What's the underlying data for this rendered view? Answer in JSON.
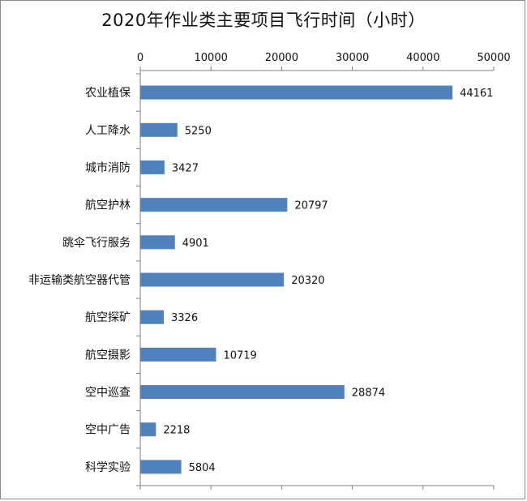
{
  "chart_data": {
    "type": "bar",
    "orientation": "horizontal",
    "title": "2020年作业类主要项目飞行时间（小时）",
    "xlim": [
      0,
      50000
    ],
    "ticks": [
      0,
      10000,
      20000,
      30000,
      40000,
      50000
    ],
    "tick_labels": [
      "0",
      "10000",
      "20000",
      "30000",
      "40000",
      "50000"
    ],
    "x_axis_position": "top",
    "grid": false,
    "legend": "none",
    "categories": [
      "农业植保",
      "人工降水",
      "城市消防",
      "航空护林",
      "跳伞飞行服务",
      "非运输类航空器代管",
      "航空探矿",
      "航空摄影",
      "空中巡查",
      "空中广告",
      "科学实验"
    ],
    "values": [
      44161,
      5250,
      3427,
      20797,
      4901,
      20320,
      3326,
      10719,
      28874,
      2218,
      5804
    ],
    "data_labels": [
      "44161",
      "5250",
      "3427",
      "20797",
      "4901",
      "20320",
      "3326",
      "10719",
      "28874",
      "2218",
      "5804"
    ],
    "bar_color": "#4f81bd",
    "axis_color": "#7f7f7f"
  }
}
